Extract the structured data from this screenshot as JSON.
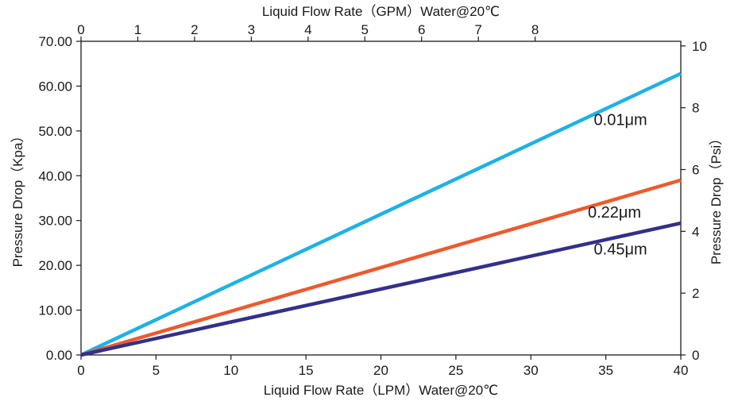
{
  "chart_data": {
    "type": "line",
    "x_bottom": {
      "label": "Liquid Flow Rate（LPM）Water@20℃",
      "range": [
        0,
        40
      ],
      "ticks": [
        0,
        5,
        10,
        15,
        20,
        25,
        30,
        35,
        40
      ],
      "tick_labels": [
        "0",
        "5",
        "10",
        "15",
        "20",
        "25",
        "30",
        "35",
        "40"
      ]
    },
    "x_top": {
      "label": "Liquid Flow Rate（GPM）Water@20℃",
      "range": [
        0,
        10.5668
      ],
      "ticks": [
        0,
        1,
        2,
        3,
        4,
        5,
        6,
        7,
        8
      ],
      "tick_labels": [
        "0",
        "1",
        "2",
        "3",
        "4",
        "5",
        "6",
        "7",
        "8"
      ]
    },
    "y_left": {
      "label": "Pressure Drop（Kpa）",
      "range": [
        0,
        70
      ],
      "ticks": [
        0,
        10,
        20,
        30,
        40,
        50,
        60,
        70
      ],
      "tick_labels": [
        "0.00",
        "10.00",
        "20.00",
        "30.00",
        "40.00",
        "50.00",
        "60.00",
        "70.00"
      ]
    },
    "y_right": {
      "label": "Pressure Drop（Psi）",
      "range": [
        0,
        10.15
      ],
      "ticks": [
        0,
        2,
        4,
        6,
        8,
        10
      ],
      "tick_labels": [
        "0",
        "2",
        "4",
        "6",
        "8",
        "10"
      ]
    },
    "series": [
      {
        "name": "0.01μm",
        "color": "#1fb1e6",
        "x": [
          0,
          40
        ],
        "y": [
          0,
          62.8
        ]
      },
      {
        "name": "0.22μm",
        "color": "#ec5a2e",
        "x": [
          0,
          40
        ],
        "y": [
          0,
          39.0
        ]
      },
      {
        "name": "0.45μm",
        "color": "#33308a",
        "x": [
          0,
          40
        ],
        "y": [
          0,
          29.4
        ]
      }
    ],
    "annotations": [
      {
        "text": "0.01μm",
        "x": 34.2,
        "y": 51.3
      },
      {
        "text": "0.22μm",
        "x": 33.8,
        "y": 30.7
      },
      {
        "text": "0.45μm",
        "x": 34.2,
        "y": 22.4
      }
    ]
  }
}
